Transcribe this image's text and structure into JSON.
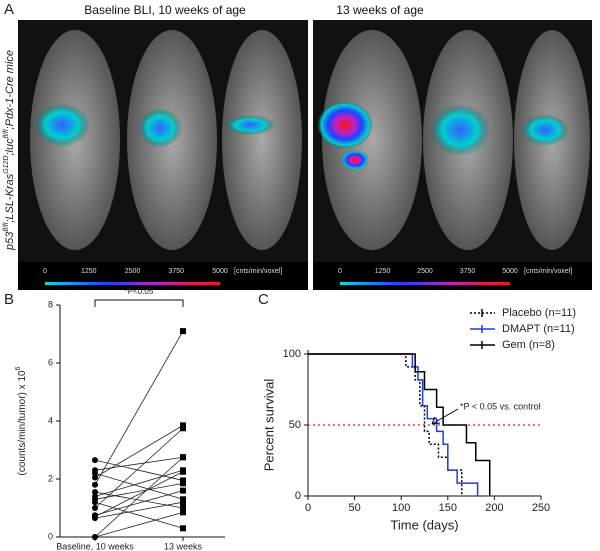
{
  "panel_letters": [
    "A",
    "B",
    "C"
  ],
  "image_panel": {
    "left_title": "Baseline BLI, 10 weeks of age",
    "right_title": "13 weeks of age",
    "side_label_parts": [
      "p53",
      "fl/fl",
      ";LSL-Kras",
      "G12D",
      ";luc",
      "fl/fl",
      ";Pdx-1-Cre mice"
    ],
    "colorbar_ticks": [
      0,
      1250,
      2500,
      3750,
      5000
    ],
    "colorbar_unit": "[cnts/min/voxel]"
  },
  "chart_data": [
    {
      "type": "paired",
      "categories": [
        "Baseline, 10 weeks",
        "13 weeks"
      ],
      "ylabel": "(counts/min/tumor) x 10",
      "ylabel_exponent": "6",
      "annotation": "*P<0.05",
      "pairs": [
        [
          2.65,
          1.95
        ],
        [
          2.3,
          2.75
        ],
        [
          2.2,
          1.3
        ],
        [
          2.05,
          3.85
        ],
        [
          1.8,
          7.1
        ],
        [
          1.55,
          1.0
        ],
        [
          1.4,
          2.3
        ],
        [
          1.3,
          1.85
        ],
        [
          1.2,
          0.3
        ],
        [
          1.0,
          3.75
        ],
        [
          0.75,
          1.6
        ],
        [
          0.7,
          2.25
        ],
        [
          0.65,
          1.2
        ],
        [
          0.0,
          0.85
        ],
        [
          0.0,
          2.75
        ]
      ],
      "ylim": [
        0,
        8
      ],
      "yticks": [
        0,
        2,
        4,
        6,
        8
      ]
    },
    {
      "type": "step",
      "xlabel": "Time (days)",
      "ylabel": "Percent survival",
      "xlim": [
        0,
        250
      ],
      "xticks": [
        0,
        50,
        100,
        150,
        200,
        250
      ],
      "ylim": [
        0,
        100
      ],
      "yticks": [
        0,
        50,
        100
      ],
      "reference_line": {
        "value": 50,
        "color": "#e02020"
      },
      "annotation": "*P < 0.05 vs. control",
      "series": [
        {
          "name": "Placebo (n=11)",
          "color": "#000000",
          "dash": "2,2",
          "x": [
            0,
            105,
            115,
            120,
            125,
            130,
            140,
            150,
            165
          ],
          "values": [
            100,
            90.9,
            81.8,
            63.6,
            45.5,
            36.4,
            27.3,
            18.2,
            0
          ]
        },
        {
          "name": "DMAPT (n=11)",
          "color": "#1f3fd6",
          "dash": "",
          "x": [
            0,
            112,
            118,
            123,
            128,
            138,
            145,
            150,
            160,
            182
          ],
          "values": [
            100,
            90.9,
            81.8,
            63.6,
            54.5,
            45.5,
            36.4,
            18.2,
            9.1,
            0
          ]
        },
        {
          "name": "Gem (n=8)",
          "color": "#000000",
          "dash": "",
          "x": [
            0,
            115,
            125,
            138,
            145,
            170,
            180,
            195
          ],
          "values": [
            100,
            87.5,
            75,
            62.5,
            50,
            37.5,
            25,
            0
          ]
        }
      ]
    }
  ]
}
